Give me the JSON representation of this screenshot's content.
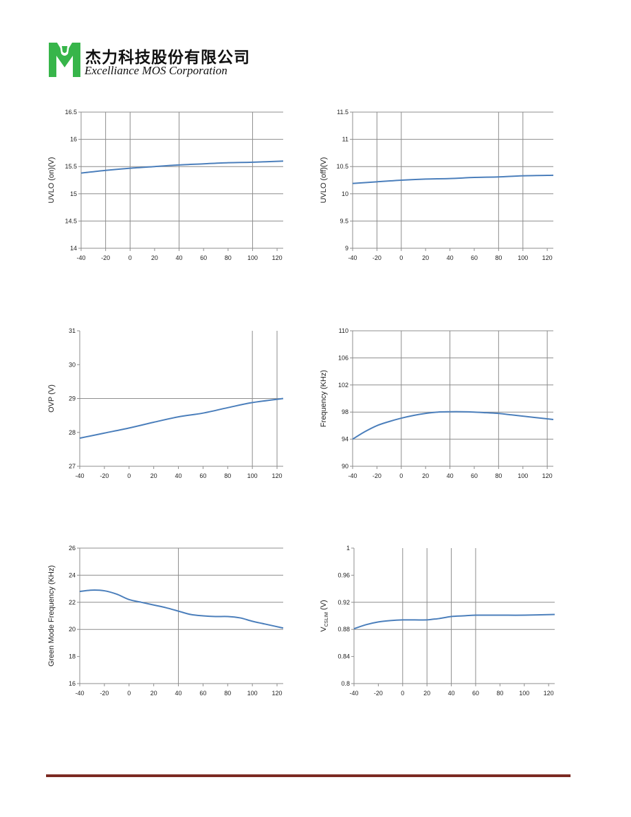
{
  "header": {
    "company_cn": "杰力科技股份有限公司",
    "company_en": "Excelliance MOS Corporation",
    "logo_colors": {
      "green": "#37b54a",
      "white": "#ffffff"
    }
  },
  "colors": {
    "series": "#4a7ebb",
    "grid": "#8c8c8c",
    "footer_rule": "#7b2a22"
  },
  "chart_data": [
    {
      "type": "line",
      "ylabel": "UVLO (on)(V)",
      "xlim": [
        -40,
        125
      ],
      "ylim": [
        14,
        16.5
      ],
      "xticks": [
        -40,
        -20,
        0,
        20,
        40,
        60,
        80,
        100,
        120
      ],
      "xtick_labels": [
        "-40",
        "-20",
        "0",
        "20",
        "40",
        "60",
        "80",
        "100",
        "120"
      ],
      "yticks": [
        14,
        14.5,
        15,
        15.5,
        16,
        16.5
      ],
      "ytick_labels": [
        "14",
        "14.5",
        "15",
        "15.5",
        "16",
        "16.5"
      ],
      "vgrid": [
        -20,
        0,
        40,
        100
      ],
      "hgrid": [
        14.5,
        15,
        15.5,
        16,
        16.5
      ],
      "series": [
        {
          "x": [
            -40,
            -20,
            0,
            20,
            40,
            60,
            80,
            100,
            125
          ],
          "y": [
            15.38,
            15.43,
            15.47,
            15.5,
            15.53,
            15.55,
            15.57,
            15.58,
            15.6
          ]
        }
      ]
    },
    {
      "type": "line",
      "ylabel": "UVLO (off)(V)",
      "xlim": [
        -40,
        125
      ],
      "ylim": [
        9,
        11.5
      ],
      "xticks": [
        -40,
        -20,
        0,
        20,
        40,
        60,
        80,
        100,
        120
      ],
      "xtick_labels": [
        "-40",
        "-20",
        "0",
        "20",
        "40",
        "60",
        "80",
        "100",
        "120"
      ],
      "yticks": [
        9,
        9.5,
        10,
        10.5,
        11,
        11.5
      ],
      "ytick_labels": [
        "9",
        "9.5",
        "10",
        "10.5",
        "11",
        "11.5"
      ],
      "vgrid": [
        -20,
        0,
        80,
        100
      ],
      "hgrid": [
        9.5,
        10,
        10.5,
        11,
        11.5
      ],
      "series": [
        {
          "x": [
            -40,
            -20,
            0,
            20,
            40,
            60,
            80,
            100,
            125
          ],
          "y": [
            10.19,
            10.22,
            10.25,
            10.27,
            10.28,
            10.3,
            10.31,
            10.33,
            10.34
          ]
        }
      ]
    },
    {
      "type": "line",
      "ylabel": "OVP (V)",
      "xlim": [
        -40,
        125
      ],
      "ylim": [
        27,
        31
      ],
      "xticks": [
        -40,
        -20,
        0,
        20,
        40,
        60,
        80,
        100,
        120
      ],
      "xtick_labels": [
        "-40",
        "-20",
        "0",
        "20",
        "40",
        "60",
        "80",
        "100",
        "120"
      ],
      "yticks": [
        27,
        28,
        29,
        30,
        31
      ],
      "ytick_labels": [
        "27",
        "28",
        "29",
        "30",
        "31"
      ],
      "vgrid": [
        100,
        120
      ],
      "hgrid": [
        29
      ],
      "series": [
        {
          "x": [
            -40,
            -20,
            0,
            20,
            40,
            60,
            80,
            100,
            125
          ],
          "y": [
            27.83,
            27.98,
            28.13,
            28.3,
            28.46,
            28.57,
            28.73,
            28.88,
            29.0
          ]
        }
      ]
    },
    {
      "type": "line",
      "ylabel": "Frequency (KHz)",
      "xlim": [
        -40,
        125
      ],
      "ylim": [
        90,
        110
      ],
      "xticks": [
        -40,
        -20,
        0,
        20,
        40,
        60,
        80,
        100,
        120
      ],
      "xtick_labels": [
        "-40",
        "-20",
        "0",
        "20",
        "40",
        "60",
        "80",
        "100",
        "120"
      ],
      "yticks": [
        90,
        94,
        98,
        102,
        106,
        110
      ],
      "ytick_labels": [
        "90",
        "94",
        "98",
        "102",
        "106",
        "110"
      ],
      "vgrid": [
        0,
        40,
        80,
        120
      ],
      "hgrid": [
        94,
        98,
        102,
        106,
        110
      ],
      "series": [
        {
          "x": [
            -40,
            -30,
            -20,
            -10,
            0,
            10,
            20,
            30,
            40,
            50,
            60,
            70,
            80,
            90,
            100,
            110,
            125
          ],
          "y": [
            94.0,
            95.1,
            96.0,
            96.6,
            97.1,
            97.5,
            97.8,
            98.0,
            98.05,
            98.05,
            98.0,
            97.9,
            97.8,
            97.6,
            97.4,
            97.2,
            96.9
          ]
        }
      ]
    },
    {
      "type": "line",
      "ylabel": "Green Mode Frequency (KHz)",
      "xlim": [
        -40,
        125
      ],
      "ylim": [
        16,
        26
      ],
      "xticks": [
        -40,
        -20,
        0,
        20,
        40,
        60,
        80,
        100,
        120
      ],
      "xtick_labels": [
        "-40",
        "-20",
        "0",
        "20",
        "40",
        "60",
        "80",
        "100",
        "120"
      ],
      "yticks": [
        16,
        18,
        20,
        22,
        24,
        26
      ],
      "ytick_labels": [
        "16",
        "18",
        "20",
        "22",
        "24",
        "26"
      ],
      "vgrid": [
        40
      ],
      "hgrid": [
        20,
        22,
        24,
        26
      ],
      "series": [
        {
          "x": [
            -40,
            -30,
            -20,
            -10,
            0,
            10,
            20,
            30,
            40,
            50,
            60,
            70,
            80,
            90,
            100,
            110,
            125
          ],
          "y": [
            22.8,
            22.9,
            22.85,
            22.6,
            22.2,
            22.0,
            21.8,
            21.6,
            21.35,
            21.1,
            21.0,
            20.95,
            20.95,
            20.85,
            20.6,
            20.4,
            20.1
          ]
        }
      ]
    },
    {
      "type": "line",
      "ylabel_main": "V",
      "ylabel_sub": "CSLIM",
      "ylabel_unit": " (V)",
      "xlim": [
        -40,
        125
      ],
      "ylim": [
        0.8,
        1.0
      ],
      "xticks": [
        -40,
        -20,
        0,
        20,
        40,
        60,
        80,
        100,
        120
      ],
      "xtick_labels": [
        "-40",
        "-20",
        "0",
        "20",
        "40",
        "60",
        "80",
        "100",
        "120"
      ],
      "yticks": [
        0.8,
        0.84,
        0.88,
        0.92,
        0.96,
        1.0
      ],
      "ytick_labels": [
        "0.8",
        "0.84",
        "0.88",
        "0.92",
        "0.96",
        "1"
      ],
      "vgrid": [
        0,
        20,
        40,
        60
      ],
      "hgrid": [
        0.88,
        0.92
      ],
      "series": [
        {
          "x": [
            -40,
            -30,
            -20,
            -10,
            0,
            10,
            20,
            25,
            30,
            40,
            50,
            60,
            80,
            100,
            125
          ],
          "y": [
            0.881,
            0.887,
            0.891,
            0.893,
            0.894,
            0.894,
            0.894,
            0.895,
            0.896,
            0.899,
            0.9,
            0.901,
            0.901,
            0.901,
            0.902
          ]
        }
      ]
    }
  ]
}
